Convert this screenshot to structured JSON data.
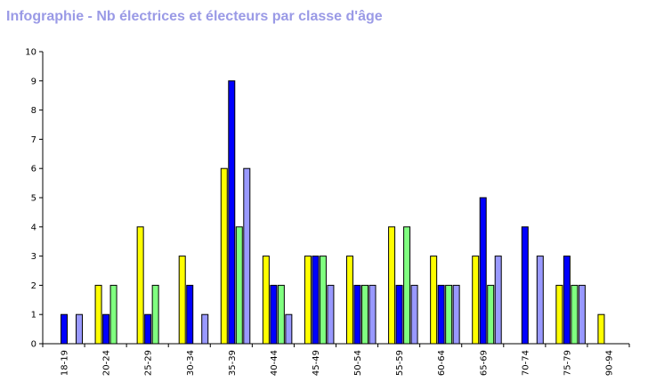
{
  "page": {
    "title": "Infographie - Nb électrices et électeurs par classe d'âge"
  },
  "chart_data": {
    "type": "bar",
    "title": "Infographie - Nb électrices et électeurs par classe d'âge",
    "xlabel": "",
    "ylabel": "",
    "ylim": [
      0,
      10
    ],
    "y_ticks": [
      "0",
      "1",
      "2",
      "3",
      "4",
      "5",
      "6",
      "7",
      "8",
      "9",
      "10"
    ],
    "grid": false,
    "legend": "none",
    "categories": [
      "18-19",
      "20-24",
      "25-29",
      "30-34",
      "35-39",
      "40-44",
      "45-49",
      "50-54",
      "55-59",
      "60-64",
      "65-69",
      "70-74",
      "75-79",
      "90-94"
    ],
    "series": [
      {
        "color": "#ffff00",
        "values": [
          0,
          2,
          4,
          3,
          6,
          3,
          3,
          3,
          4,
          3,
          3,
          0,
          2,
          1
        ]
      },
      {
        "color": "#0000ff",
        "values": [
          1,
          1,
          1,
          2,
          9,
          2,
          3,
          2,
          2,
          2,
          5,
          4,
          3,
          0
        ]
      },
      {
        "color": "#80ff80",
        "values": [
          0,
          2,
          2,
          0,
          4,
          2,
          3,
          2,
          4,
          2,
          2,
          0,
          2,
          0
        ]
      },
      {
        "color": "#9999ff",
        "values": [
          1,
          0,
          0,
          1,
          6,
          1,
          2,
          2,
          2,
          2,
          3,
          3,
          2,
          0
        ]
      }
    ]
  }
}
